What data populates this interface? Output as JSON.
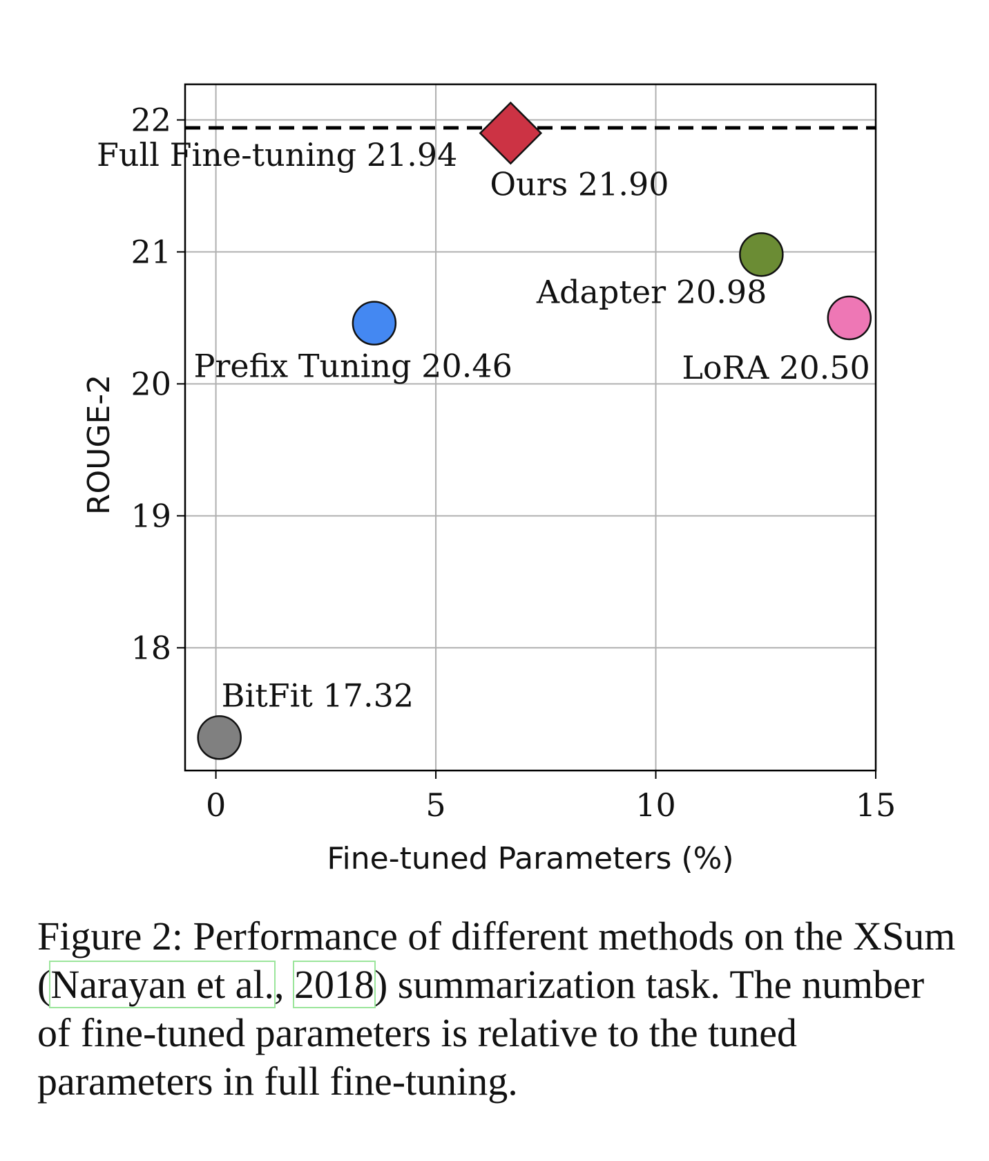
{
  "chart_data": {
    "type": "scatter",
    "title": "",
    "xlabel": "Fine-tuned Parameters (%)",
    "ylabel": "ROUGE-2",
    "xlim": [
      -0.7,
      15
    ],
    "ylim": [
      17.07,
      22.27
    ],
    "xticks": [
      0,
      5,
      10,
      15
    ],
    "yticks": [
      18,
      19,
      20,
      21,
      22
    ],
    "grid": true,
    "points": [
      {
        "label": "Ours 21.90",
        "x": 6.7,
        "y": 21.9,
        "marker": "diamond",
        "color": "#cc3344"
      },
      {
        "label": "Adapter 20.98",
        "x": 12.4,
        "y": 20.98,
        "marker": "circle",
        "color": "#6b8c34"
      },
      {
        "label": "LoRA 20.50",
        "x": 14.4,
        "y": 20.5,
        "marker": "circle",
        "color": "#ee77b5"
      },
      {
        "label": "Prefix Tuning 20.46",
        "x": 3.6,
        "y": 20.46,
        "marker": "circle",
        "color": "#4488f2"
      },
      {
        "label": "BitFit 17.32",
        "x": 0.08,
        "y": 17.32,
        "marker": "circle",
        "color": "#808080"
      }
    ],
    "baseline": {
      "label": "Full Fine-tuning 21.94",
      "y": 21.94,
      "style": "dashed",
      "color": "#000000"
    }
  },
  "caption": {
    "prefix": "Figure 2: Performance of different methods on the XSum (",
    "cite_author": "Narayan et al.",
    "cite_sep": ", ",
    "cite_year": "2018",
    "suffix": ") summarization task. The number of fine-tuned parameters is relative to the tuned parameters in full fine-tuning."
  }
}
